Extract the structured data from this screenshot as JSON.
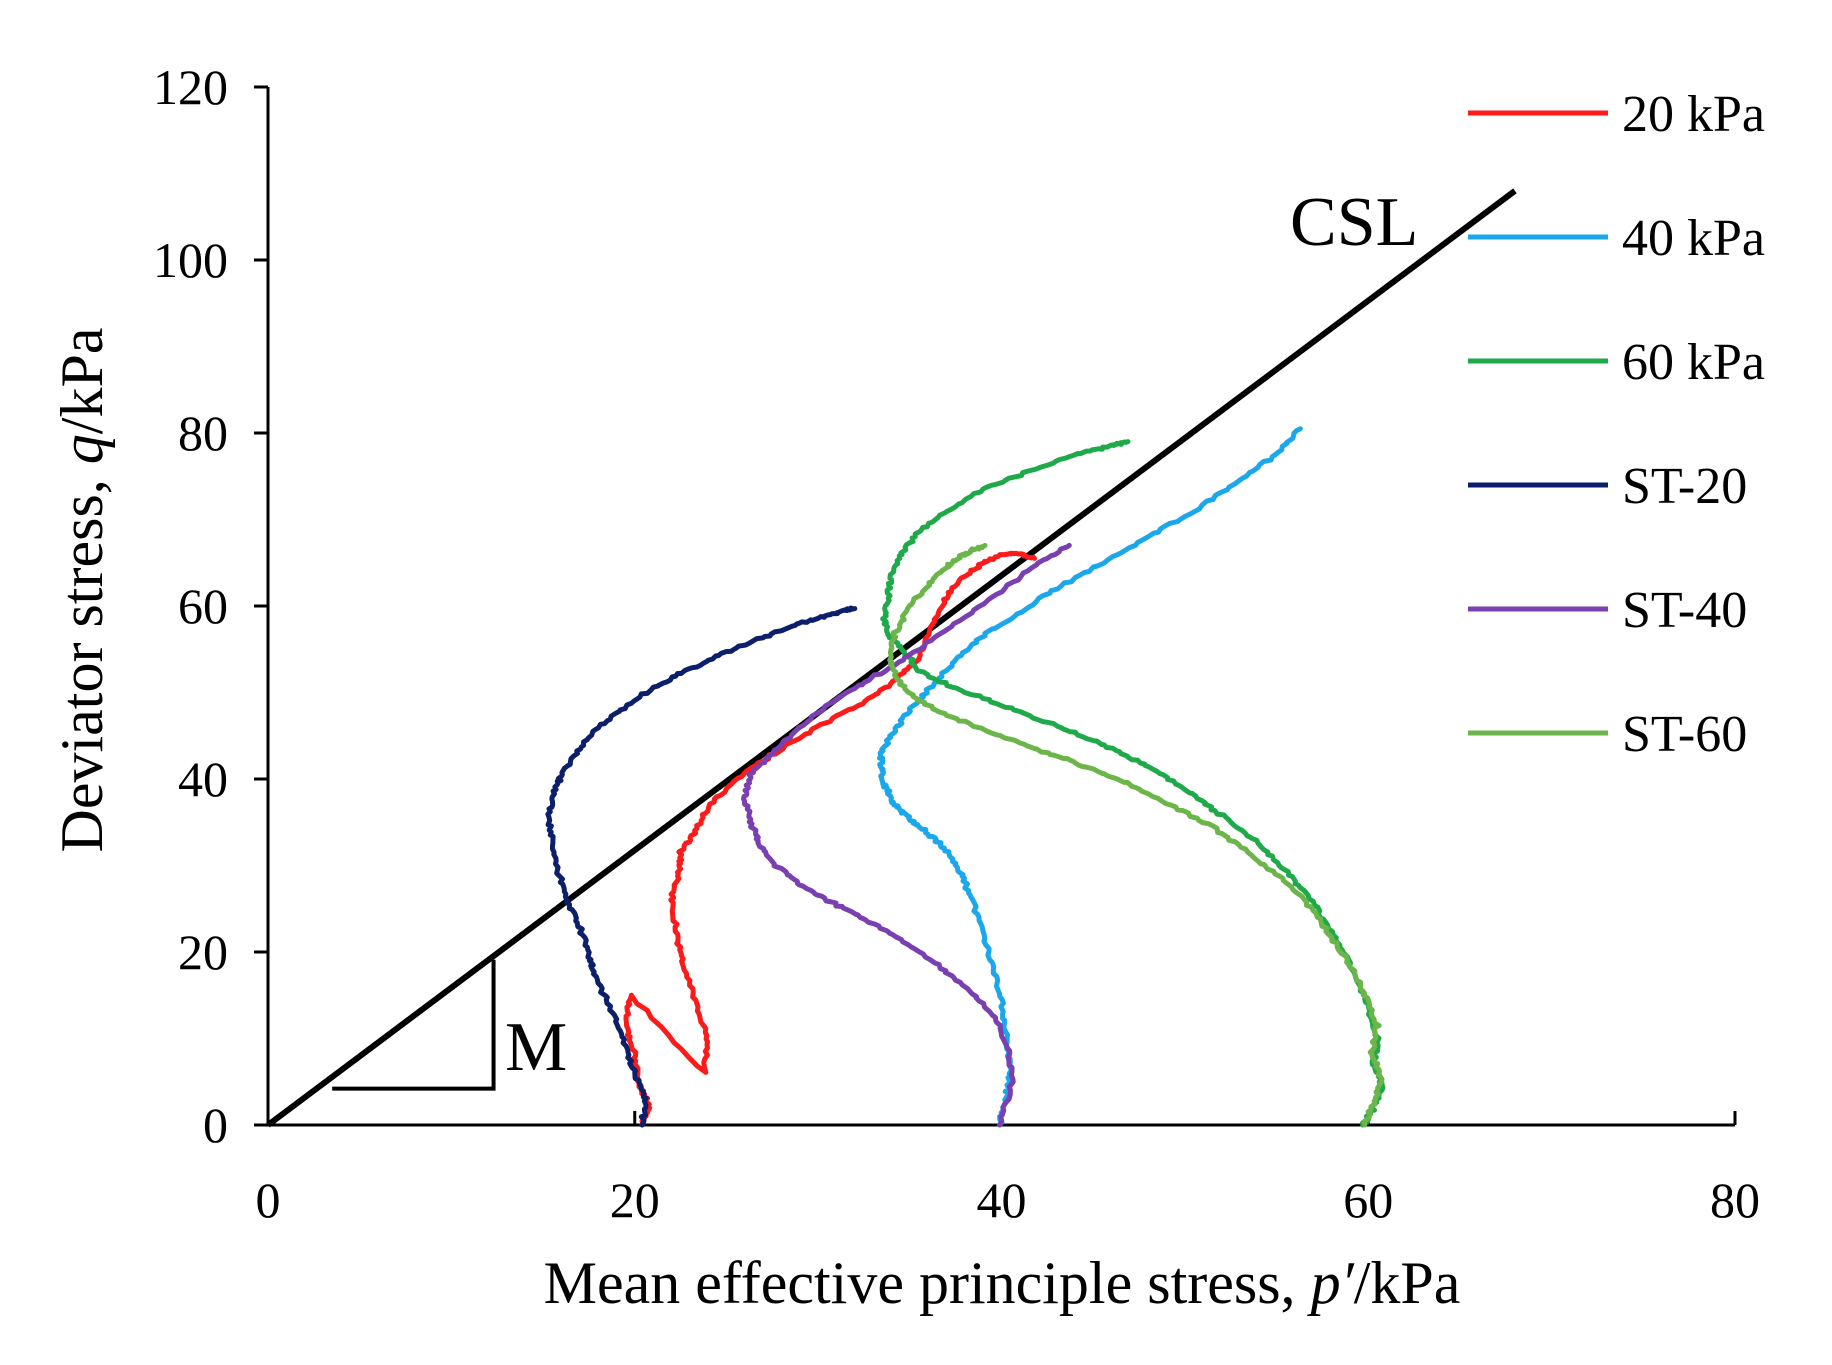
{
  "chart_data": {
    "type": "line",
    "xlabel_prefix": "Mean effective principle stress, ",
    "xlabel_var": "p′",
    "xlabel_unit": "/kPa",
    "ylabel_prefix": "Deviator stress, ",
    "ylabel_var": "q",
    "ylabel_unit": "/kPa",
    "xlim": [
      0,
      80
    ],
    "ylim": [
      0,
      120
    ],
    "xticks": [
      "0",
      "20",
      "40",
      "60",
      "80"
    ],
    "yticks": [
      "0",
      "20",
      "40",
      "60",
      "80",
      "100",
      "120"
    ],
    "annotations": {
      "csl_label": "CSL",
      "slope_label": "M"
    },
    "csl_line": {
      "x": [
        0,
        68
      ],
      "y": [
        0,
        108
      ]
    },
    "slope_triangle": {
      "x": [
        3.5,
        12.3,
        12.3
      ],
      "y": [
        4.2,
        4.2,
        19.1
      ]
    },
    "legend_position": "top-right",
    "series": [
      {
        "name": "20 kPa",
        "color": "#ff1a1a",
        "x": [
          20.4,
          20.8,
          20.3,
          20.0,
          19.5,
          19.8,
          23.8,
          24.0,
          23.4,
          22.6,
          22.3,
          22.0,
          22.4,
          22.5,
          23.3,
          24.1,
          25.6,
          27.6,
          30.0,
          32.2,
          34.0,
          35.3,
          36.2,
          37.0,
          38.0,
          39.0,
          40.0,
          41.0,
          41.8
        ],
        "y": [
          0.0,
          2.0,
          4.5,
          8.0,
          11.5,
          15.0,
          6.0,
          10.0,
          14.0,
          18.5,
          22.0,
          26.0,
          29.0,
          31.5,
          34.0,
          37.0,
          40.0,
          43.0,
          46.0,
          48.5,
          51.0,
          53.5,
          57.5,
          61.0,
          63.5,
          65.0,
          66.0,
          66.0,
          65.5
        ]
      },
      {
        "name": "40 kPa",
        "color": "#1aa7ec",
        "x": [
          39.9,
          40.2,
          40.5,
          40.3,
          40.0,
          39.6,
          39.0,
          38.4,
          37.8,
          37.1,
          36.4,
          35.5,
          34.7,
          34.0,
          33.6,
          33.4,
          33.5,
          34.3,
          35.2,
          36.3,
          37.6,
          39.0,
          40.8,
          43.0,
          45.5,
          48.0,
          50.5,
          53.0,
          55.0,
          56.3
        ],
        "y": [
          0.0,
          3.0,
          6.0,
          10.0,
          14.0,
          18.0,
          22.0,
          26.0,
          29.0,
          31.5,
          33.0,
          34.5,
          36.0,
          37.5,
          39.5,
          41.5,
          43.5,
          46.0,
          48.5,
          51.0,
          54.0,
          56.5,
          59.0,
          62.0,
          65.0,
          68.0,
          71.0,
          74.5,
          77.5,
          80.5
        ]
      },
      {
        "name": "60 kPa",
        "color": "#1faa4a",
        "x": [
          59.7,
          60.3,
          60.8,
          60.3,
          60.5,
          60.0,
          59.4,
          58.5,
          57.8,
          56.7,
          55.5,
          54.0,
          52.2,
          50.5,
          48.8,
          47.0,
          45.0,
          42.5,
          40.0,
          37.5,
          35.5,
          34.8,
          33.9,
          33.6,
          33.8,
          34.0,
          34.5,
          35.5,
          37.0,
          39.0,
          41.5,
          44.0,
          46.0,
          46.9
        ],
        "y": [
          0.0,
          2.0,
          4.5,
          7.0,
          10.0,
          13.5,
          17.0,
          20.5,
          23.0,
          26.5,
          29.5,
          32.5,
          35.5,
          38.0,
          40.5,
          42.5,
          44.5,
          46.5,
          48.5,
          50.5,
          52.5,
          54.5,
          56.5,
          58.5,
          61.0,
          63.5,
          66.0,
          68.5,
          71.0,
          73.5,
          75.5,
          77.5,
          78.5,
          79.0
        ]
      },
      {
        "name": "ST-20",
        "color": "#0c1f6b",
        "x": [
          20.4,
          20.6,
          20.0,
          19.4,
          18.8,
          18.0,
          17.5,
          17.0,
          16.3,
          15.8,
          15.5,
          15.3,
          15.6,
          16.0,
          16.8,
          17.8,
          19.2,
          21.0,
          22.8,
          24.6,
          26.5,
          28.5,
          30.3,
          31.4,
          32.0
        ],
        "y": [
          0.0,
          3.0,
          6.0,
          9.5,
          13.0,
          16.5,
          19.5,
          23.0,
          26.0,
          29.5,
          33.0,
          36.0,
          38.5,
          40.5,
          43.0,
          45.5,
          48.0,
          50.5,
          52.5,
          54.3,
          56.0,
          57.6,
          58.8,
          59.5,
          59.7
        ]
      },
      {
        "name": "ST-40",
        "color": "#7a3fb0",
        "x": [
          39.9,
          40.6,
          40.4,
          39.6,
          38.3,
          36.5,
          34.5,
          32.4,
          30.5,
          28.9,
          27.7,
          26.8,
          26.3,
          26.0,
          26.3,
          27.5,
          29.0,
          30.8,
          32.7,
          34.8,
          37.2,
          39.5,
          41.7,
          43.7
        ],
        "y": [
          0.0,
          5.0,
          9.0,
          12.5,
          15.5,
          18.5,
          21.5,
          24.0,
          26.0,
          28.0,
          30.0,
          32.5,
          35.0,
          38.0,
          40.5,
          43.0,
          46.0,
          49.0,
          51.5,
          54.0,
          57.5,
          61.0,
          64.5,
          67.0
        ]
      },
      {
        "name": "ST-60",
        "color": "#6bb54a",
        "x": [
          59.8,
          60.4,
          60.7,
          60.2,
          60.5,
          59.8,
          59.0,
          57.9,
          56.7,
          55.3,
          53.5,
          51.5,
          49.2,
          46.8,
          44.5,
          42.5,
          40.0,
          37.5,
          35.5,
          34.3,
          33.9,
          34.2,
          35.0,
          36.0,
          37.0,
          37.8,
          38.5,
          39.1
        ],
        "y": [
          0.0,
          3.0,
          5.5,
          8.5,
          11.5,
          15.0,
          18.5,
          22.0,
          25.5,
          28.5,
          31.5,
          34.5,
          37.0,
          39.5,
          41.5,
          43.0,
          45.0,
          47.0,
          49.0,
          51.5,
          54.0,
          57.0,
          60.0,
          62.5,
          64.5,
          65.8,
          66.5,
          67.0
        ]
      }
    ]
  }
}
